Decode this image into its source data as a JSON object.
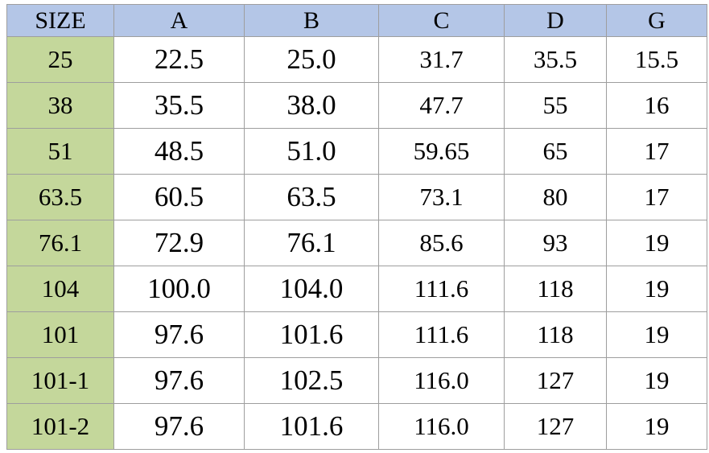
{
  "table": {
    "header": [
      "SIZE",
      "A",
      "B",
      "C",
      "D",
      "G"
    ],
    "rows": [
      [
        "25",
        "22.5",
        "25.0",
        "31.7",
        "35.5",
        "15.5"
      ],
      [
        "38",
        "35.5",
        "38.0",
        "47.7",
        "55",
        "16"
      ],
      [
        "51",
        "48.5",
        "51.0",
        "59.65",
        "65",
        "17"
      ],
      [
        "63.5",
        "60.5",
        "63.5",
        "73.1",
        "80",
        "17"
      ],
      [
        "76.1",
        "72.9",
        "76.1",
        "85.6",
        "93",
        "19"
      ],
      [
        "104",
        "100.0",
        "104.0",
        "111.6",
        "118",
        "19"
      ],
      [
        "101",
        "97.6",
        "101.6",
        "111.6",
        "118",
        "19"
      ],
      [
        "101-1",
        "97.6",
        "102.5",
        "116.0",
        "127",
        "19"
      ],
      [
        "101-2",
        "97.6",
        "101.6",
        "116.0",
        "127",
        "19"
      ]
    ]
  }
}
